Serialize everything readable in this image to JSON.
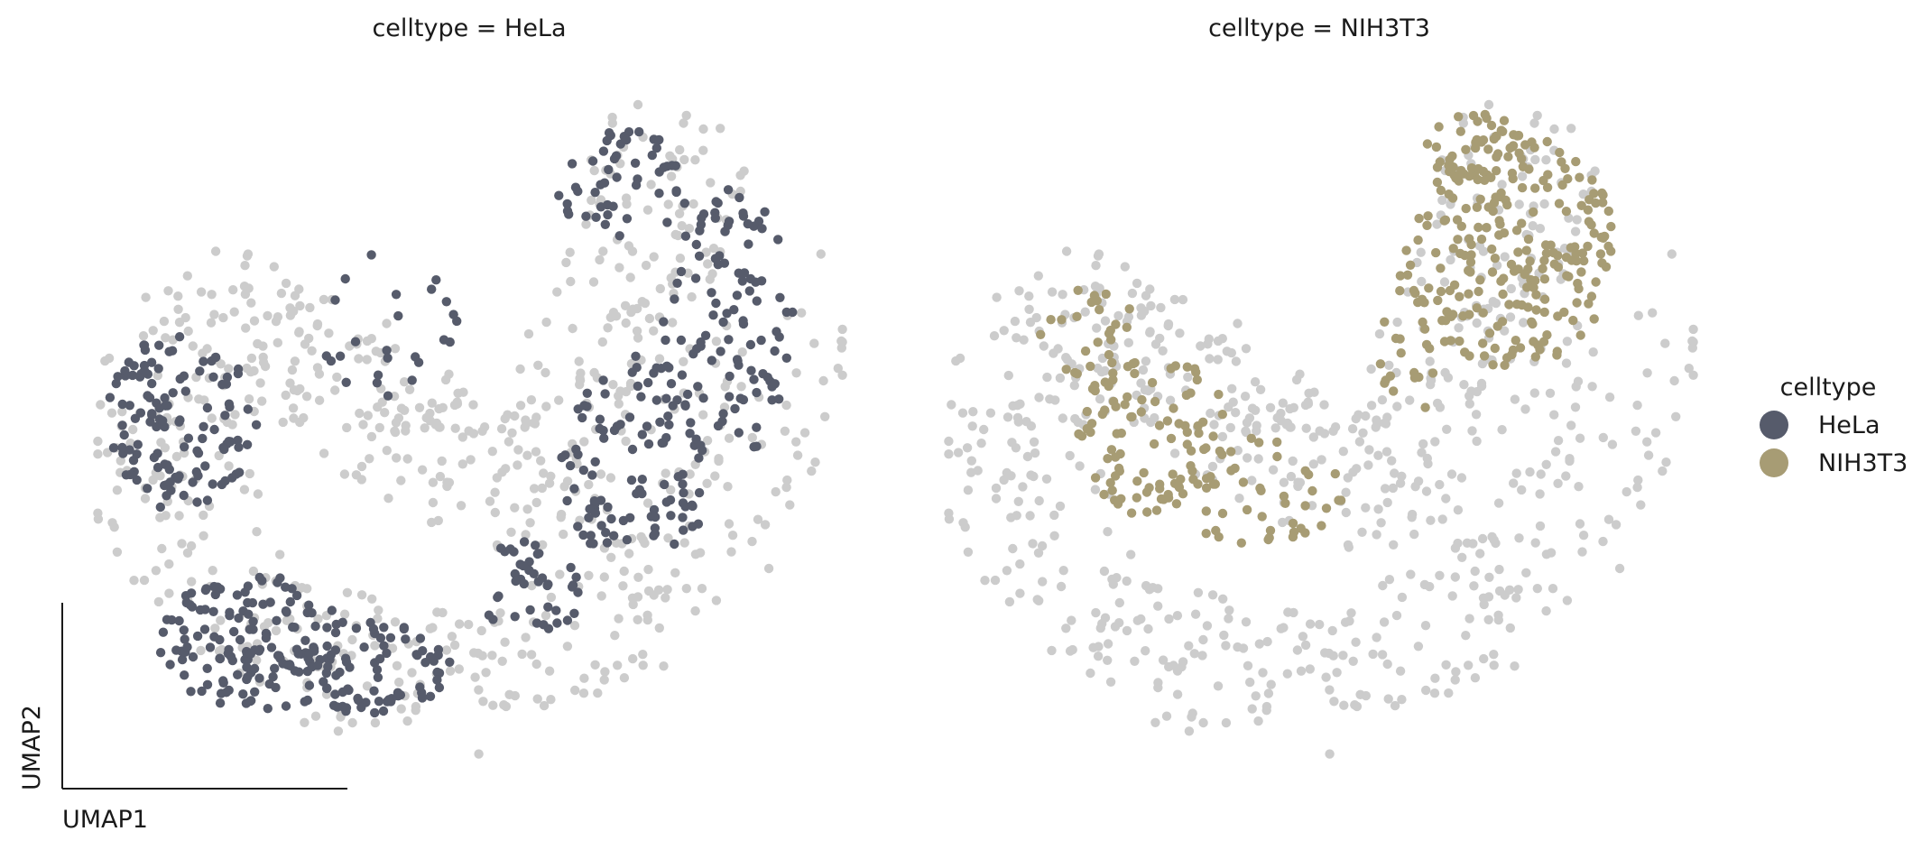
{
  "chart_data": {
    "type": "scatter",
    "background_color": "#cccccc",
    "xlabel": "UMAP1",
    "ylabel": "UMAP2",
    "legend": {
      "title": "celltype",
      "placement": "right",
      "entries": [
        {
          "name": "HeLa",
          "color": "#565b6b"
        },
        {
          "name": "NIH3T3",
          "color": "#a79c74"
        }
      ]
    },
    "panels": [
      {
        "title": "celltype = HeLa",
        "highlight": "HeLa",
        "color": "#565b6b",
        "regions": [
          {
            "cx": 0.12,
            "cy": 0.5,
            "rx": 0.1,
            "ry": 0.13,
            "n": 120
          },
          {
            "cx": 0.22,
            "cy": 0.82,
            "rx": 0.13,
            "ry": 0.1,
            "n": 150
          },
          {
            "cx": 0.38,
            "cy": 0.86,
            "rx": 0.1,
            "ry": 0.07,
            "n": 70
          },
          {
            "cx": 0.58,
            "cy": 0.74,
            "rx": 0.07,
            "ry": 0.07,
            "n": 40
          },
          {
            "cx": 0.72,
            "cy": 0.56,
            "rx": 0.1,
            "ry": 0.16,
            "n": 110
          },
          {
            "cx": 0.84,
            "cy": 0.36,
            "rx": 0.09,
            "ry": 0.2,
            "n": 100
          },
          {
            "cx": 0.7,
            "cy": 0.15,
            "rx": 0.09,
            "ry": 0.08,
            "n": 50
          },
          {
            "cx": 0.4,
            "cy": 0.35,
            "rx": 0.1,
            "ry": 0.12,
            "n": 25
          }
        ]
      },
      {
        "title": "celltype = NIH3T3",
        "highlight": "NIH3T3",
        "color": "#a79c74",
        "regions": [
          {
            "cx": 0.75,
            "cy": 0.25,
            "rx": 0.14,
            "ry": 0.17,
            "n": 220
          },
          {
            "cx": 0.7,
            "cy": 0.1,
            "rx": 0.08,
            "ry": 0.05,
            "n": 40
          },
          {
            "cx": 0.62,
            "cy": 0.38,
            "rx": 0.05,
            "ry": 0.12,
            "n": 25
          },
          {
            "cx": 0.28,
            "cy": 0.52,
            "rx": 0.1,
            "ry": 0.12,
            "n": 90
          },
          {
            "cx": 0.42,
            "cy": 0.6,
            "rx": 0.12,
            "ry": 0.08,
            "n": 45
          },
          {
            "cx": 0.2,
            "cy": 0.38,
            "rx": 0.07,
            "ry": 0.08,
            "n": 30
          }
        ]
      }
    ]
  }
}
